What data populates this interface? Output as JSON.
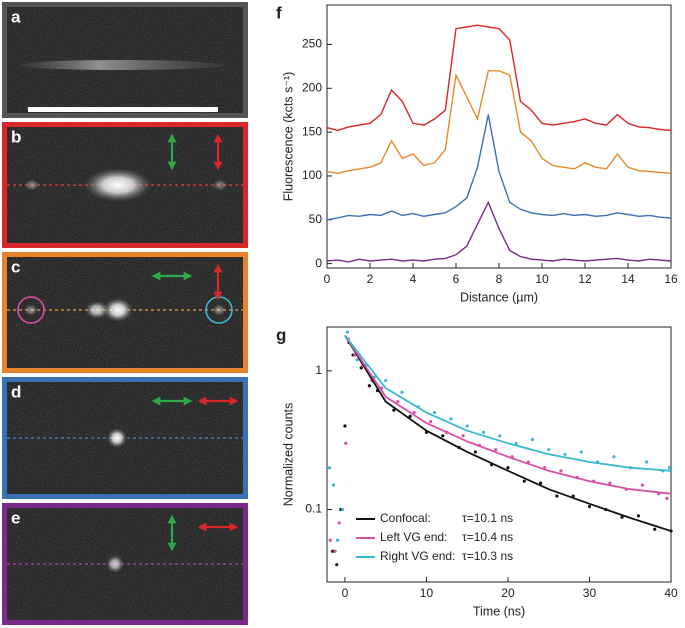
{
  "panels": [
    "a",
    "b",
    "c",
    "d",
    "e"
  ],
  "chart_data": [
    {
      "type": "line",
      "label": "f",
      "x_label": "Distance (µm)",
      "y_label": "Fluorescence (kcts s⁻¹)",
      "xlim": [
        0,
        16
      ],
      "xticks": [
        0,
        2,
        4,
        6,
        8,
        10,
        12,
        14,
        16
      ],
      "ylim": [
        -5,
        295
      ],
      "yticks": [
        0,
        50,
        100,
        150,
        200,
        250
      ],
      "x": [
        0,
        0.5,
        1,
        1.5,
        2,
        2.5,
        3,
        3.5,
        4,
        4.5,
        5,
        5.5,
        6,
        6.5,
        7,
        7.5,
        8,
        8.5,
        9,
        9.5,
        10,
        10.5,
        11,
        11.5,
        12,
        12.5,
        13,
        13.5,
        14,
        14.5,
        15,
        15.5,
        16
      ],
      "series": [
        {
          "color": "#d8262b",
          "values": [
            155,
            152,
            156,
            158,
            160,
            170,
            198,
            185,
            160,
            158,
            165,
            175,
            268,
            270,
            272,
            270,
            268,
            255,
            185,
            175,
            160,
            158,
            160,
            162,
            165,
            160,
            158,
            170,
            160,
            156,
            155,
            153,
            152
          ]
        },
        {
          "color": "#e8882b",
          "values": [
            105,
            103,
            106,
            108,
            110,
            115,
            140,
            120,
            125,
            112,
            115,
            130,
            215,
            190,
            165,
            220,
            220,
            215,
            150,
            140,
            120,
            112,
            110,
            108,
            115,
            110,
            108,
            125,
            110,
            106,
            105,
            104,
            103
          ]
        },
        {
          "color": "#3b6fb6",
          "values": [
            50,
            52,
            55,
            54,
            56,
            55,
            60,
            55,
            57,
            54,
            56,
            58,
            65,
            75,
            110,
            170,
            105,
            70,
            62,
            58,
            56,
            55,
            57,
            55,
            56,
            54,
            55,
            58,
            56,
            54,
            55,
            53,
            52
          ]
        },
        {
          "color": "#7a2a8a",
          "values": [
            3,
            4,
            2,
            5,
            3,
            4,
            5,
            3,
            4,
            3,
            5,
            6,
            10,
            20,
            45,
            70,
            40,
            15,
            8,
            5,
            4,
            3,
            5,
            4,
            3,
            4,
            5,
            6,
            4,
            3,
            5,
            4,
            3
          ]
        }
      ]
    },
    {
      "type": "scatter",
      "label": "g",
      "x_label": "Time (ns)",
      "y_label": "Normalized counts",
      "log_y": true,
      "xlim": [
        -2.2,
        40
      ],
      "xticks": [
        0,
        10,
        20,
        30,
        40
      ],
      "ylim": [
        0.03,
        2.07
      ],
      "yticks": [
        0.1,
        1
      ],
      "series": [
        {
          "name": "Confocal:",
          "lifetime": "τ=10.1 ns",
          "color": "#111111",
          "x": [
            -1.5,
            -1,
            -0.5,
            0,
            0.5,
            1,
            2,
            3,
            4,
            6,
            8,
            10,
            12,
            14,
            16,
            18,
            20,
            22,
            24,
            26,
            28,
            30,
            32,
            34,
            36,
            38,
            40
          ],
          "values": [
            0.05,
            0.04,
            0.1,
            0.4,
            1.6,
            1.3,
            1.05,
            0.78,
            0.72,
            0.52,
            0.47,
            0.36,
            0.34,
            0.28,
            0.26,
            0.21,
            0.2,
            0.16,
            0.155,
            0.125,
            0.125,
            0.105,
            0.1,
            0.088,
            0.09,
            0.072,
            0.07
          ],
          "fit_x": [
            0,
            5,
            10,
            15,
            20,
            25,
            30,
            35,
            40
          ],
          "fit_values": [
            1.8,
            0.6,
            0.37,
            0.26,
            0.19,
            0.14,
            0.11,
            0.087,
            0.07
          ]
        },
        {
          "name": "Left VG end:",
          "lifetime": "τ=10.4 ns",
          "color": "#d84fa8",
          "x": [
            -1.8,
            -1.2,
            -0.7,
            0.1,
            0.4,
            1.2,
            2.2,
            3.3,
            4.5,
            6.5,
            8.5,
            10.5,
            12.5,
            14.5,
            16.5,
            18.5,
            20.5,
            22.5,
            24.5,
            26.5,
            28.5,
            30.5,
            32.5,
            34.5,
            36.5,
            38.5,
            39.5
          ],
          "values": [
            0.06,
            0.05,
            0.08,
            0.3,
            1.7,
            1.3,
            1.1,
            0.85,
            0.75,
            0.6,
            0.5,
            0.43,
            0.36,
            0.34,
            0.29,
            0.27,
            0.24,
            0.22,
            0.2,
            0.19,
            0.17,
            0.16,
            0.155,
            0.14,
            0.15,
            0.13,
            0.12
          ],
          "fit_x": [
            0,
            5,
            10,
            15,
            20,
            25,
            30,
            35,
            40
          ],
          "fit_values": [
            1.8,
            0.65,
            0.42,
            0.31,
            0.24,
            0.19,
            0.16,
            0.14,
            0.13
          ]
        },
        {
          "name": "Right VG end:",
          "lifetime": "τ=10.3 ns",
          "color": "#3ab8d0",
          "x": [
            -1.9,
            -1.4,
            -0.9,
            -0.3,
            0.3,
            1.5,
            2.6,
            3.6,
            5,
            7,
            9,
            11,
            13,
            15,
            17,
            19,
            21,
            23,
            25,
            27,
            29,
            31,
            33,
            35,
            37,
            39,
            39.8
          ],
          "values": [
            0.2,
            0.15,
            0.06,
            0.1,
            1.9,
            1.2,
            1.1,
            0.9,
            0.85,
            0.7,
            0.55,
            0.5,
            0.45,
            0.4,
            0.36,
            0.34,
            0.3,
            0.32,
            0.27,
            0.25,
            0.26,
            0.22,
            0.24,
            0.2,
            0.22,
            0.19,
            0.2
          ],
          "fit_x": [
            0,
            5,
            10,
            15,
            20,
            25,
            30,
            35,
            40
          ],
          "fit_values": [
            1.8,
            0.75,
            0.5,
            0.37,
            0.3,
            0.25,
            0.22,
            0.2,
            0.19
          ]
        }
      ]
    }
  ]
}
